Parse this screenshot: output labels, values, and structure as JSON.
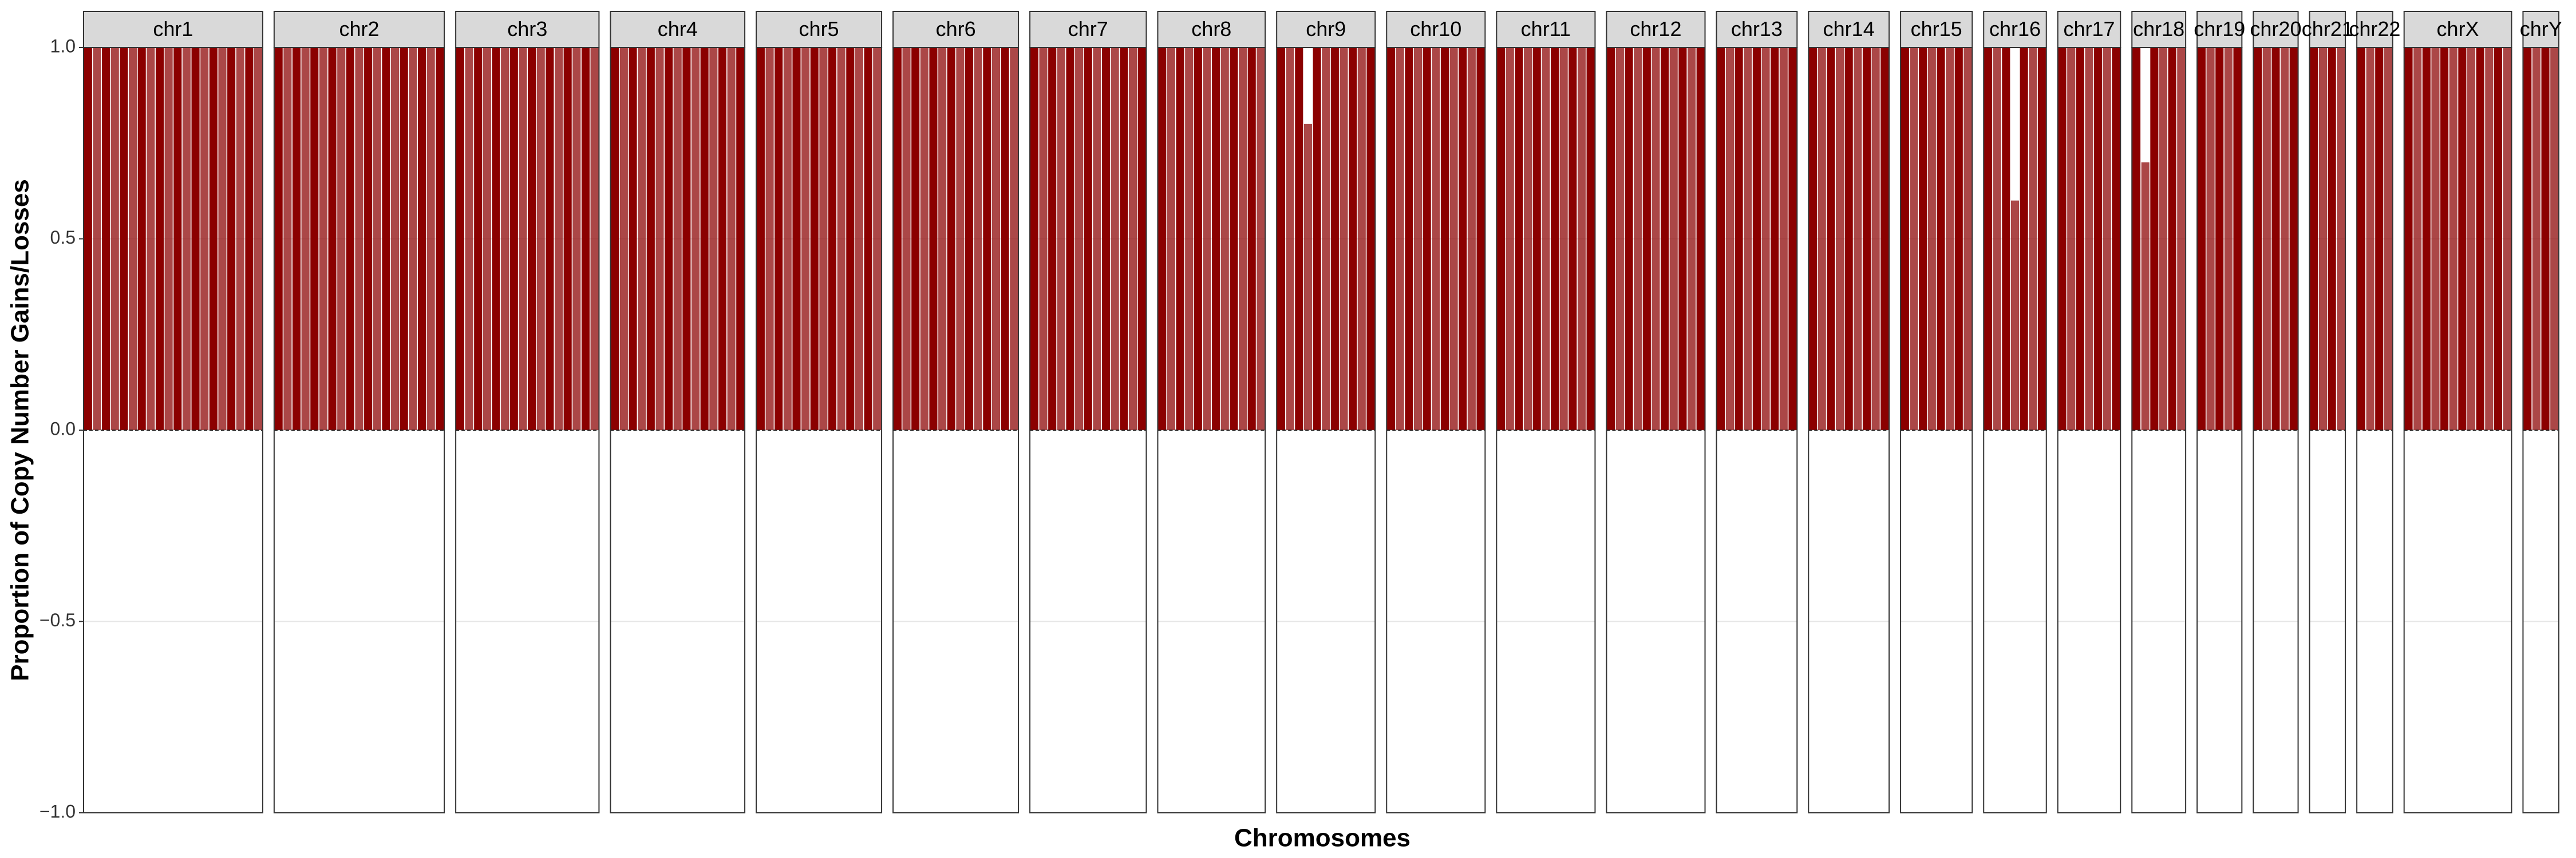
{
  "chart_data": {
    "type": "bar",
    "ylabel": "Proportion of Copy Number Gains/Losses",
    "xlabel": "Chromosomes",
    "ylim": [
      -1,
      1
    ],
    "yticks": [
      {
        "value": -1,
        "label": "−1.0"
      },
      {
        "value": -0.5,
        "label": "−0.5"
      },
      {
        "value": 0,
        "label": "0.0"
      },
      {
        "value": 0.5,
        "label": "0.5"
      },
      {
        "value": 1,
        "label": "1.0"
      }
    ],
    "grid": true,
    "color": "#8b0000",
    "facets": [
      {
        "name": "chr1",
        "values": [
          1,
          1,
          1,
          1,
          1,
          1,
          1,
          1,
          1,
          1,
          1,
          1,
          1,
          1,
          1,
          1,
          1,
          1,
          1,
          1
        ]
      },
      {
        "name": "chr2",
        "values": [
          1,
          1,
          1,
          1,
          1,
          1,
          1,
          1,
          1,
          1,
          1,
          1,
          1,
          1,
          1,
          1,
          1,
          1,
          1
        ]
      },
      {
        "name": "chr3",
        "values": [
          1,
          1,
          1,
          1,
          1,
          1,
          1,
          1,
          1,
          1,
          1,
          1,
          1,
          1,
          1,
          1
        ]
      },
      {
        "name": "chr4",
        "values": [
          1,
          1,
          1,
          1,
          1,
          1,
          1,
          1,
          1,
          1,
          1,
          1,
          1,
          1,
          1
        ]
      },
      {
        "name": "chr5",
        "values": [
          1,
          1,
          1,
          1,
          1,
          1,
          1,
          1,
          1,
          1,
          1,
          1,
          1,
          1
        ]
      },
      {
        "name": "chr6",
        "values": [
          1,
          1,
          1,
          1,
          1,
          1,
          1,
          1,
          1,
          1,
          1,
          1,
          1,
          1
        ]
      },
      {
        "name": "chr7",
        "values": [
          1,
          1,
          1,
          1,
          1,
          1,
          1,
          1,
          1,
          1,
          1,
          1,
          1
        ]
      },
      {
        "name": "chr8",
        "values": [
          1,
          1,
          1,
          1,
          1,
          1,
          1,
          1,
          1,
          1,
          1,
          1
        ]
      },
      {
        "name": "chr9",
        "values": [
          1,
          1,
          1,
          0.8,
          1,
          1,
          1,
          1,
          1,
          1,
          1
        ]
      },
      {
        "name": "chr10",
        "values": [
          1,
          1,
          1,
          1,
          1,
          1,
          1,
          1,
          1,
          1,
          1
        ]
      },
      {
        "name": "chr11",
        "values": [
          1,
          1,
          1,
          1,
          1,
          1,
          1,
          1,
          1,
          1,
          1
        ]
      },
      {
        "name": "chr12",
        "values": [
          1,
          1,
          1,
          1,
          1,
          1,
          1,
          1,
          1,
          1,
          1
        ]
      },
      {
        "name": "chr13",
        "values": [
          1,
          1,
          1,
          1,
          1,
          1,
          1,
          1,
          1
        ]
      },
      {
        "name": "chr14",
        "values": [
          1,
          1,
          1,
          1,
          1,
          1,
          1,
          1,
          1
        ]
      },
      {
        "name": "chr15",
        "values": [
          1,
          1,
          1,
          1,
          1,
          1,
          1,
          1
        ]
      },
      {
        "name": "chr16",
        "values": [
          1,
          1,
          1,
          0.6,
          1,
          1,
          1
        ]
      },
      {
        "name": "chr17",
        "values": [
          1,
          1,
          1,
          1,
          1,
          1,
          1
        ]
      },
      {
        "name": "chr18",
        "values": [
          1,
          0.7,
          1,
          1,
          1,
          1
        ]
      },
      {
        "name": "chr19",
        "values": [
          1,
          1,
          1,
          1,
          1
        ]
      },
      {
        "name": "chr20",
        "values": [
          1,
          1,
          1,
          1,
          1
        ]
      },
      {
        "name": "chr21",
        "values": [
          1,
          1,
          1,
          1
        ]
      },
      {
        "name": "chr22",
        "values": [
          1,
          1,
          1,
          1
        ]
      },
      {
        "name": "chrX",
        "values": [
          1,
          1,
          1,
          1,
          1,
          1,
          1,
          1,
          1,
          1,
          1,
          1
        ]
      },
      {
        "name": "chrY",
        "values": [
          1,
          1,
          1,
          1
        ]
      }
    ]
  }
}
